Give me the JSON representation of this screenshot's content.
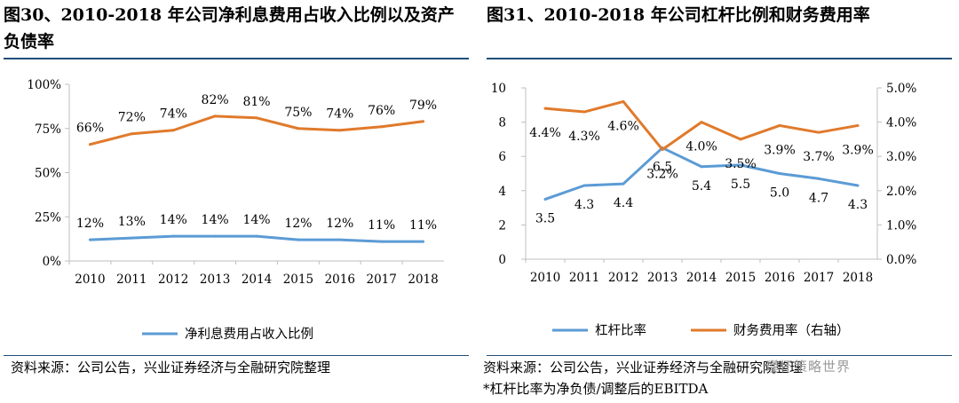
{
  "source_text": "资料来源：公司公告，兴业证券经济与全融研究院整理",
  "note_text": "*杠杆比率为净负债/调整后的EBITDA",
  "watermark": "瑾怀策略世界",
  "chart_data": [
    {
      "type": "line",
      "title": "图30、2010-2018 年公司净利息费用占收入比例以及资产负债率",
      "categories": [
        "2010",
        "2011",
        "2012",
        "2013",
        "2014",
        "2015",
        "2016",
        "2017",
        "2018"
      ],
      "ylim": [
        0,
        100
      ],
      "yticks": [
        "0%",
        "25%",
        "50%",
        "75%",
        "100%"
      ],
      "ytick_values": [
        0,
        25,
        50,
        75,
        100
      ],
      "series": [
        {
          "name": "资产负债率",
          "color": "#e07a2b",
          "axis": "left",
          "show_in_legend": false,
          "values": [
            66,
            72,
            74,
            82,
            81,
            75,
            74,
            76,
            79
          ],
          "labels": [
            "66%",
            "72%",
            "74%",
            "82%",
            "81%",
            "75%",
            "74%",
            "76%",
            "79%"
          ]
        },
        {
          "name": "净利息费用占收入比例",
          "color": "#5b9bd5",
          "axis": "left",
          "show_in_legend": true,
          "values": [
            12,
            13,
            14,
            14,
            14,
            12,
            12,
            11,
            11
          ],
          "labels": [
            "12%",
            "13%",
            "14%",
            "14%",
            "14%",
            "12%",
            "12%",
            "11%",
            "11%"
          ]
        }
      ],
      "legend": [
        {
          "name": "净利息费用占收入比例",
          "color": "#5b9bd5"
        }
      ]
    },
    {
      "type": "line",
      "title": "图31、2010-2018 年公司杠杆比例和财务费用率",
      "categories": [
        "2010",
        "2011",
        "2012",
        "2013",
        "2014",
        "2015",
        "2016",
        "2017",
        "2018"
      ],
      "ylim": [
        0,
        10
      ],
      "y2lim": [
        0,
        5
      ],
      "yticks": [
        "0",
        "2",
        "4",
        "6",
        "8",
        "10"
      ],
      "ytick_values": [
        0,
        2,
        4,
        6,
        8,
        10
      ],
      "y2ticks": [
        "0.0%",
        "1.0%",
        "2.0%",
        "3.0%",
        "4.0%",
        "5.0%"
      ],
      "y2tick_values": [
        0,
        1,
        2,
        3,
        4,
        5
      ],
      "series": [
        {
          "name": "杠杆比率",
          "color": "#5b9bd5",
          "axis": "left",
          "values": [
            3.5,
            4.3,
            4.4,
            6.5,
            5.4,
            5.5,
            5.0,
            4.7,
            4.3
          ],
          "labels": [
            "3.5",
            "4.3",
            "4.4",
            "6.5",
            "5.4",
            "5.5",
            "5.0",
            "4.7",
            "4.3"
          ]
        },
        {
          "name": "财务费用率（右轴）",
          "color": "#e07a2b",
          "axis": "right",
          "values": [
            4.4,
            4.3,
            4.6,
            3.2,
            4.0,
            3.5,
            3.9,
            3.7,
            3.9
          ],
          "labels": [
            "4.4%",
            "4.3%",
            "4.6%",
            "3.2%",
            "4.0%",
            "3.5%",
            "3.9%",
            "3.7%",
            "3.9%"
          ]
        }
      ],
      "legend": [
        {
          "name": "杠杆比率",
          "color": "#5b9bd5"
        },
        {
          "name": "财务费用率（右轴）",
          "color": "#e07a2b"
        }
      ]
    }
  ]
}
